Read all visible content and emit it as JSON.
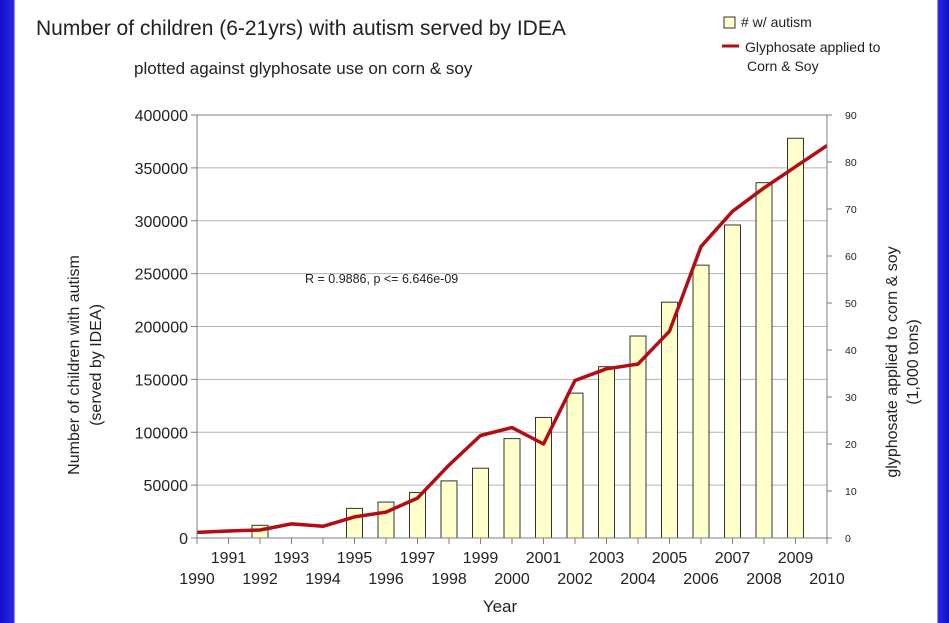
{
  "chart_data": {
    "type": "bar+line",
    "title": "Number of children (6-21yrs) with autism served by IDEA",
    "subtitle": "plotted against glyphosate use on corn & soy",
    "xlabel": "Year",
    "ylabel_left": [
      "Number of children with autism",
      "(served by IDEA)"
    ],
    "ylabel_right": [
      "glyphosate applied to corn & soy",
      "(1,000 tons)"
    ],
    "annotation": "R = 0.9886, p <= 6.646e-09",
    "x_ticks": [
      "1990",
      "1991",
      "1992",
      "1993",
      "1994",
      "1995",
      "1996",
      "1997",
      "1998",
      "1999",
      "2000",
      "2001",
      "2002",
      "2003",
      "2004",
      "2005",
      "2006",
      "2007",
      "2008",
      "2009",
      "2010"
    ],
    "y_left": {
      "min": 0,
      "max": 400000,
      "ticks": [
        "0",
        "50000",
        "100000",
        "150000",
        "200000",
        "250000",
        "300000",
        "350000",
        "400000"
      ]
    },
    "y_right": {
      "min": 0,
      "max": 90,
      "ticks": [
        "0",
        "10",
        "20",
        "30",
        "40",
        "50",
        "60",
        "70",
        "80",
        "90"
      ]
    },
    "grid": true,
    "legend": {
      "placement": "top-right",
      "entries": [
        {
          "label": "# w/ autism",
          "type": "bar"
        },
        {
          "label": "Glyphosate applied to\nCorn & Soy",
          "type": "line"
        }
      ]
    },
    "series": [
      {
        "name": "# w/ autism",
        "type": "bar",
        "axis": "left",
        "x": [
          1992,
          1995,
          1996,
          1997,
          1998,
          1999,
          2000,
          2001,
          2002,
          2003,
          2004,
          2005,
          2006,
          2007,
          2008,
          2009
        ],
        "values": [
          12000,
          28000,
          34000,
          43000,
          54000,
          66000,
          94000,
          114000,
          137000,
          162000,
          191000,
          223000,
          258000,
          296000,
          336000,
          378000
        ]
      },
      {
        "name": "Glyphosate applied to Corn & Soy",
        "type": "line",
        "axis": "right",
        "x": [
          1990,
          1991,
          1992,
          1993,
          1994,
          1995,
          1996,
          1997,
          1998,
          1999,
          2000,
          2001,
          2002,
          2003,
          2004,
          2005,
          2006,
          2007,
          2008,
          2009,
          2010
        ],
        "values": [
          1.2,
          1.5,
          1.7,
          3.0,
          2.5,
          4.5,
          5.5,
          8.5,
          15.5,
          21.8,
          23.5,
          20.0,
          33.5,
          36.0,
          37.0,
          44.0,
          62.0,
          69.5,
          74.5,
          79.0,
          83.5
        ]
      }
    ],
    "colors": {
      "bar_fill": "#ffffcc",
      "bar_stroke": "#333333",
      "line": "#b30d14",
      "grid": "#b3b3b3",
      "frame": "#7f7f7f"
    }
  }
}
